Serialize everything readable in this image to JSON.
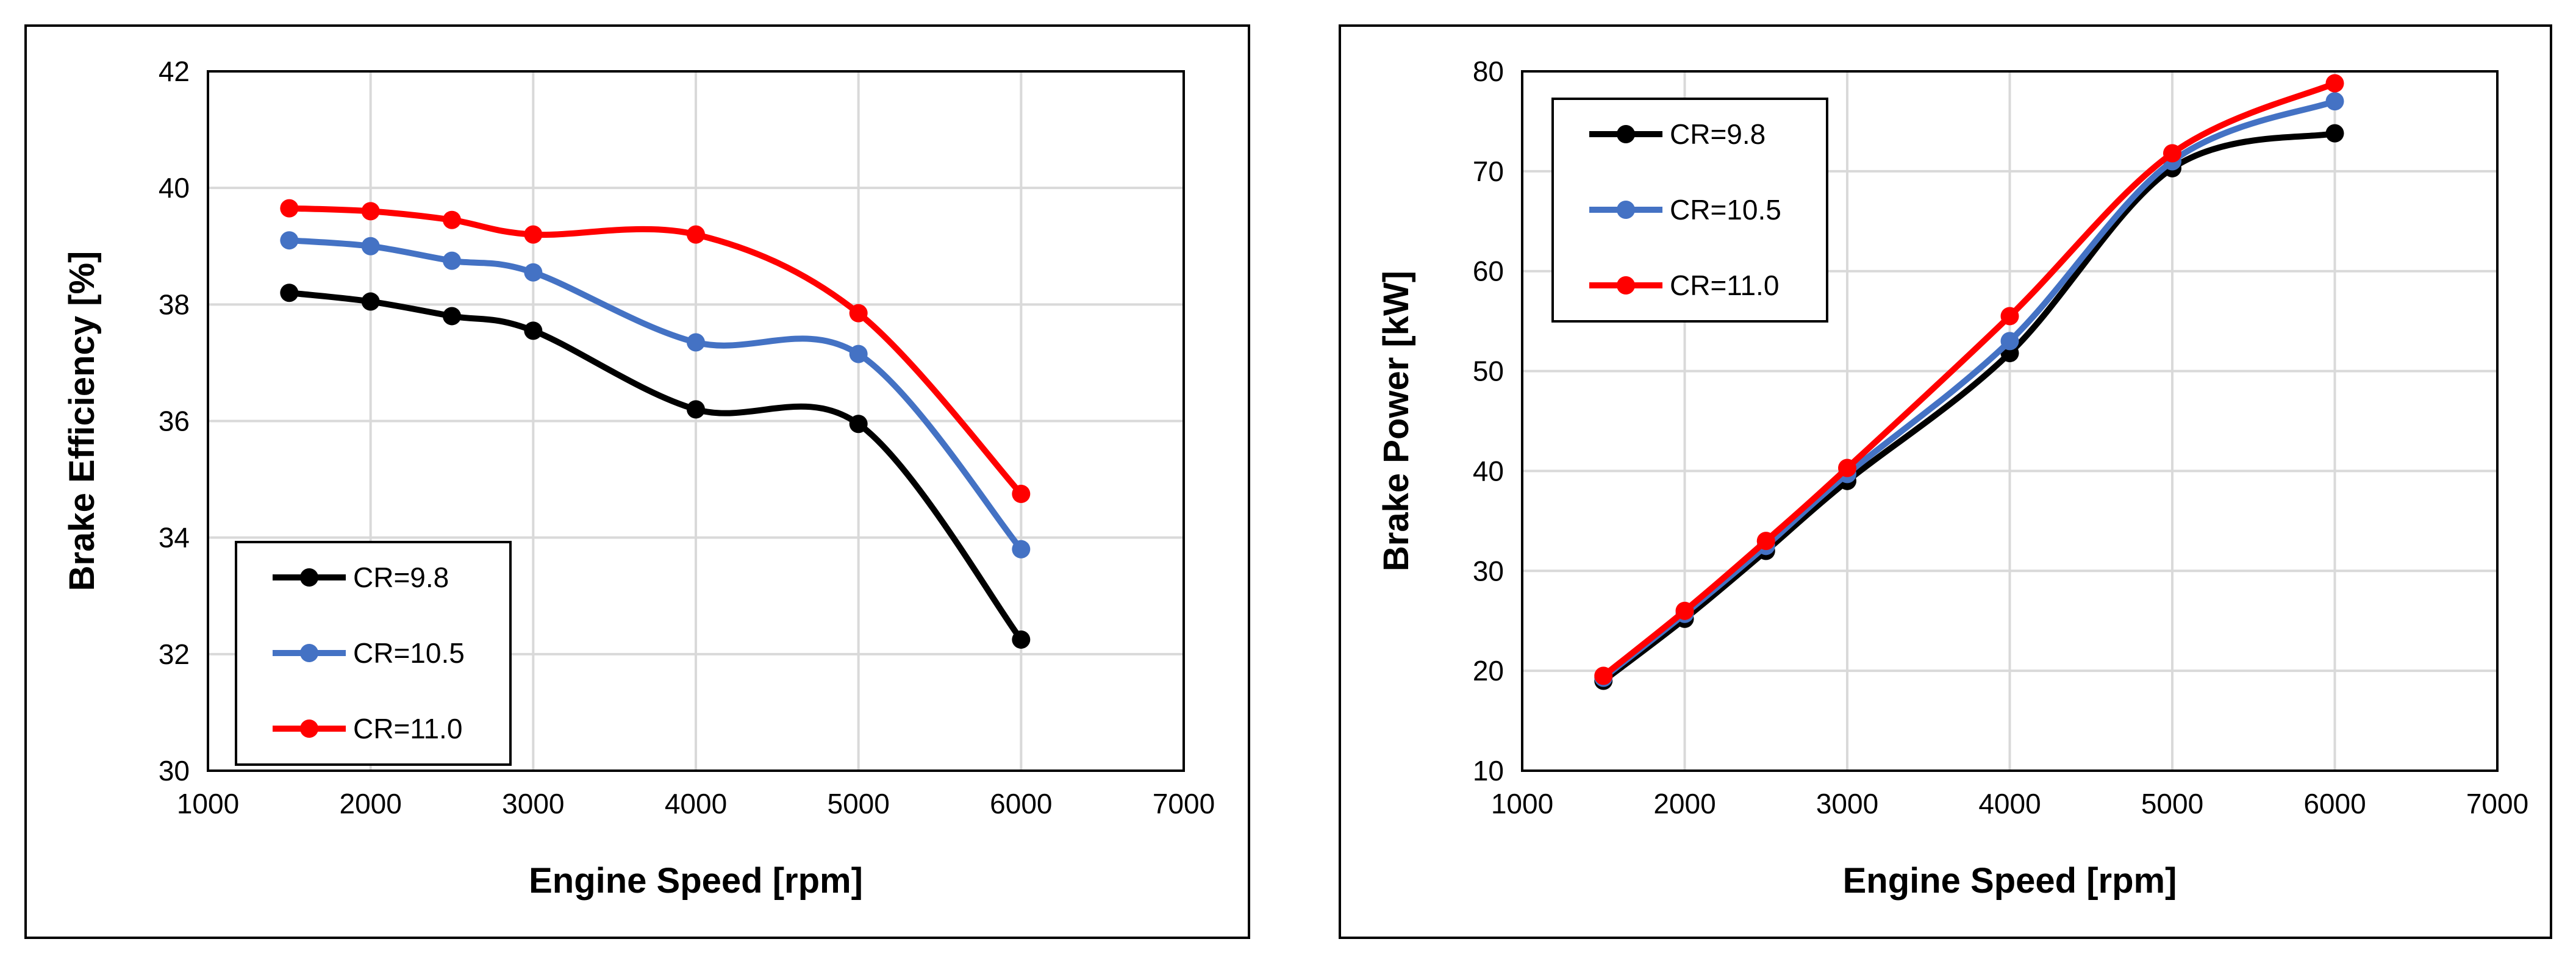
{
  "chart_data": [
    {
      "type": "line",
      "xlabel": "Engine Speed [rpm]",
      "ylabel": "Brake Efficiency [%]",
      "xlim": [
        1000,
        7000
      ],
      "ylim": [
        30,
        42
      ],
      "xticks": [
        1000,
        2000,
        3000,
        4000,
        5000,
        6000,
        7000
      ],
      "yticks": [
        30,
        32,
        34,
        36,
        38,
        40,
        42
      ],
      "grid": true,
      "legend_position": "bottom-left",
      "x": [
        1500,
        2000,
        2500,
        3000,
        4000,
        5000,
        6000
      ],
      "series": [
        {
          "name": "CR=9.8",
          "color": "#000000",
          "values": [
            38.2,
            38.05,
            37.8,
            37.55,
            36.2,
            35.95,
            32.25
          ]
        },
        {
          "name": "CR=10.5",
          "color": "#4472C4",
          "values": [
            39.1,
            39.0,
            38.75,
            38.55,
            37.35,
            37.15,
            33.8
          ]
        },
        {
          "name": "CR=11.0",
          "color": "#FF0000",
          "values": [
            39.65,
            39.6,
            39.45,
            39.2,
            39.2,
            37.85,
            34.75
          ]
        }
      ]
    },
    {
      "type": "line",
      "xlabel": "Engine Speed [rpm]",
      "ylabel": "Brake Power [kW]",
      "xlim": [
        1000,
        7000
      ],
      "ylim": [
        10,
        80
      ],
      "xticks": [
        1000,
        2000,
        3000,
        4000,
        5000,
        6000,
        7000
      ],
      "yticks": [
        10,
        20,
        30,
        40,
        50,
        60,
        70,
        80
      ],
      "grid": true,
      "legend_position": "top-left",
      "x": [
        1500,
        2000,
        2500,
        3000,
        4000,
        5000,
        6000
      ],
      "series": [
        {
          "name": "CR=9.8",
          "color": "#000000",
          "values": [
            19.0,
            25.2,
            32.0,
            39.0,
            51.8,
            70.3,
            73.8
          ]
        },
        {
          "name": "CR=10.5",
          "color": "#4472C4",
          "values": [
            19.3,
            25.7,
            32.5,
            39.7,
            53.0,
            71.0,
            77.0
          ]
        },
        {
          "name": "CR=11.0",
          "color": "#FF0000",
          "values": [
            19.5,
            26.0,
            33.0,
            40.3,
            55.5,
            71.8,
            78.8
          ]
        }
      ]
    }
  ]
}
